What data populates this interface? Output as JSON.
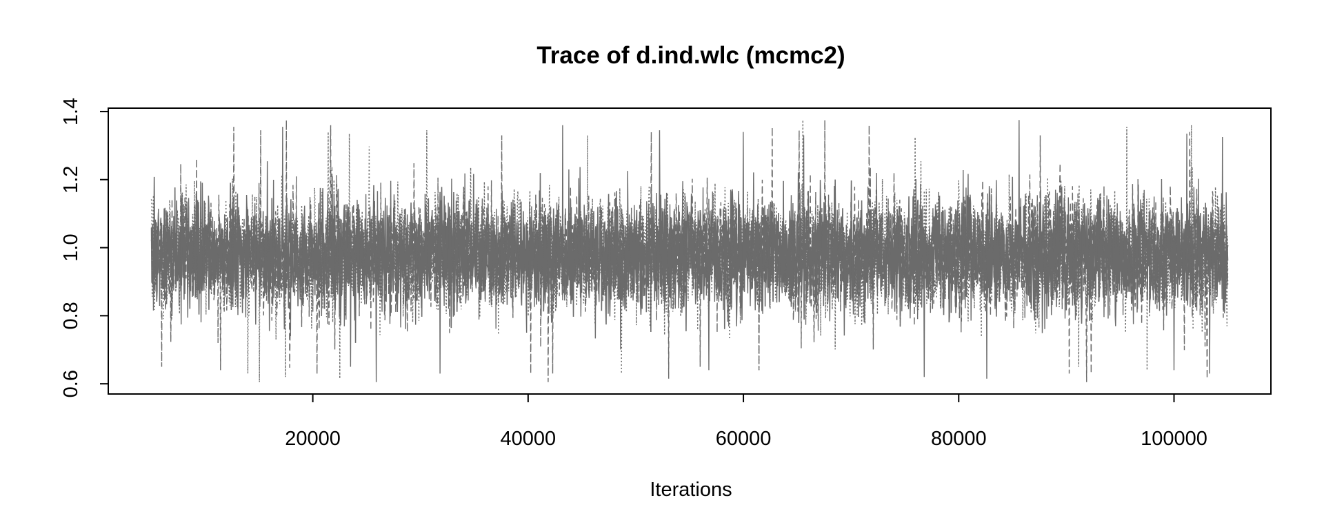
{
  "chart_data": {
    "type": "line",
    "title": "Trace of d.ind.wlc (mcmc2)",
    "xlabel": "Iterations",
    "ylabel": "",
    "xlim": [
      1000,
      109000
    ],
    "ylim": [
      0.57,
      1.41
    ],
    "x_ticks": [
      20000,
      40000,
      60000,
      80000,
      100000
    ],
    "y_ticks": [
      0.6,
      0.8,
      1.0,
      1.2,
      1.4
    ],
    "x_tick_labels": [
      "20000",
      "40000",
      "60000",
      "80000",
      "100000"
    ],
    "y_tick_labels": [
      "0.6",
      "0.8",
      "1.0",
      "1.2",
      "1.4"
    ],
    "grid": false,
    "legend": "none",
    "line_color": "#6b6b6b",
    "series": [
      {
        "x_start": 5001,
        "x_end": 105000,
        "mean": 0.98,
        "sd": 0.085,
        "min": 0.61,
        "max": 1.37,
        "line_styles": [
          "solid",
          "dashed",
          "dotted"
        ]
      }
    ],
    "extreme_points": [
      {
        "x": 17200,
        "y": 1.355
      },
      {
        "x": 43200,
        "y": 1.36
      },
      {
        "x": 52200,
        "y": 1.345
      },
      {
        "x": 60000,
        "y": 1.34
      },
      {
        "x": 65600,
        "y": 1.33
      },
      {
        "x": 85600,
        "y": 1.375
      },
      {
        "x": 101200,
        "y": 1.335
      },
      {
        "x": 104500,
        "y": 1.325
      },
      {
        "x": 25900,
        "y": 0.605
      },
      {
        "x": 76800,
        "y": 0.62
      },
      {
        "x": 82600,
        "y": 0.615
      },
      {
        "x": 56800,
        "y": 0.64
      },
      {
        "x": 103300,
        "y": 0.63
      },
      {
        "x": 31800,
        "y": 0.63
      },
      {
        "x": 23500,
        "y": 0.65
      },
      {
        "x": 100000,
        "y": 0.64
      }
    ]
  }
}
